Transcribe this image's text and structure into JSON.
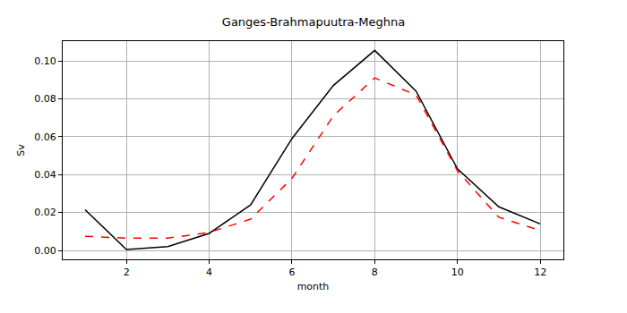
{
  "chart_data": {
    "type": "line",
    "title": "Ganges-Brahmapuutra-Meghna",
    "x_label": "month",
    "y_label": "Sv",
    "x": [
      1,
      2,
      3,
      4,
      5,
      6,
      7,
      8,
      9,
      10,
      11,
      12
    ],
    "series": [
      {
        "color": "#000000",
        "line_style": "solid",
        "values": [
          0.0215,
          0.0005,
          0.002,
          0.009,
          0.024,
          0.059,
          0.087,
          0.1055,
          0.084,
          0.043,
          0.023,
          0.014
        ]
      },
      {
        "color": "#ff0000",
        "line_style": "dash",
        "values": [
          0.0075,
          0.0065,
          0.0065,
          0.0095,
          0.0165,
          0.038,
          0.071,
          0.091,
          0.082,
          0.042,
          0.0175,
          0.0105
        ]
      }
    ],
    "xlim": [
      0.46,
      12.56
    ],
    "xticks": [
      2,
      4,
      6,
      8,
      10,
      12
    ],
    "ylim": [
      -0.0047,
      0.1104
    ],
    "yticks": [
      {
        "value": 0,
        "label": "0.00"
      },
      {
        "value": 0.02,
        "label": "0.02"
      },
      {
        "value": 0.04,
        "label": "0.04"
      },
      {
        "value": 0.06,
        "label": "0.06"
      },
      {
        "value": 0.08,
        "label": "0.08"
      },
      {
        "value": 0.1,
        "label": "0.10"
      }
    ],
    "grid": true
  }
}
